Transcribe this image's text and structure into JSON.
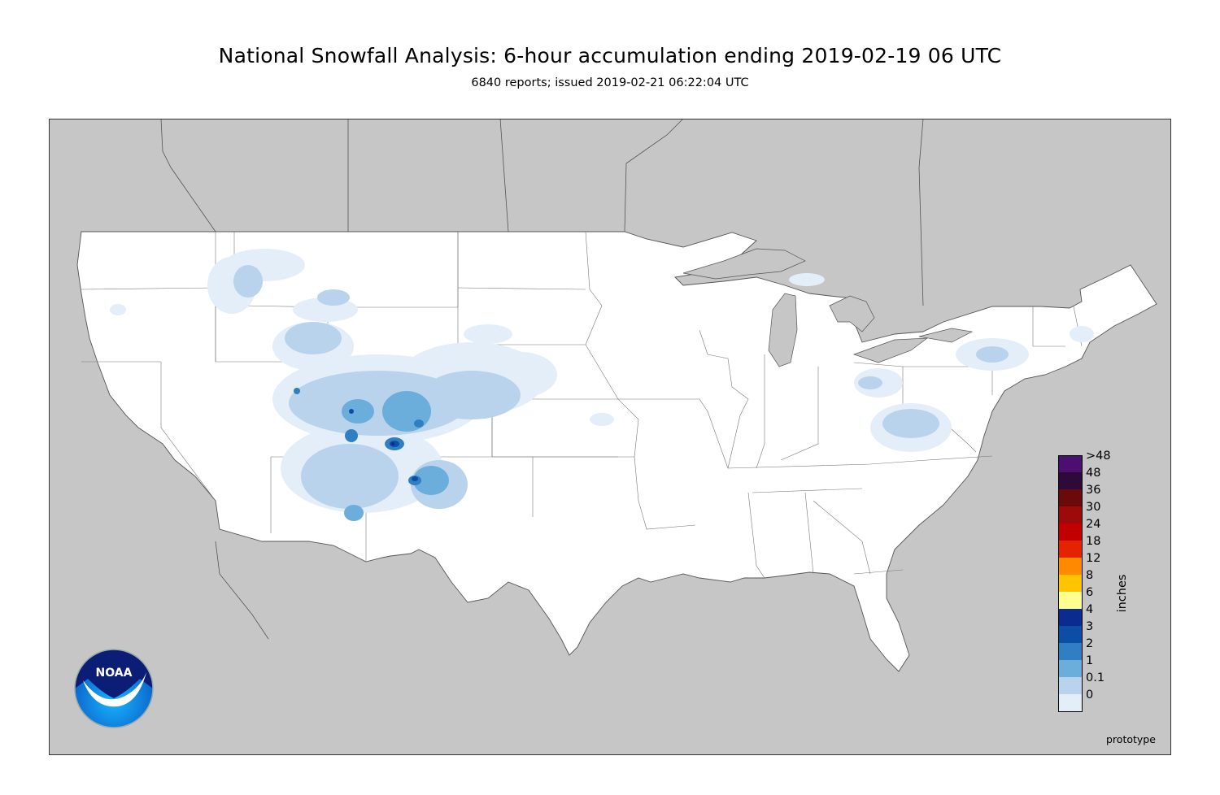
{
  "header": {
    "title": "National Snowfall Analysis: 6-hour accumulation ending 2019-02-19 06 UTC",
    "subtitle": "6840 reports; issued 2019-02-21 06:22:04 UTC"
  },
  "map": {
    "background_color": "#c6c6c6",
    "land_color": "#ffffff",
    "border_color": "#444444"
  },
  "legend": {
    "unit_label": "inches",
    "levels": [
      {
        "label": ">48",
        "color": "#4a0f6f"
      },
      {
        "label": "48",
        "color": "#2e0a3a"
      },
      {
        "label": "36",
        "color": "#6a0a0a"
      },
      {
        "label": "30",
        "color": "#9c0a0a"
      },
      {
        "label": "24",
        "color": "#c30000"
      },
      {
        "label": "18",
        "color": "#e52300"
      },
      {
        "label": "12",
        "color": "#ff8a00"
      },
      {
        "label": "8",
        "color": "#ffc400"
      },
      {
        "label": "6",
        "color": "#ffff90"
      },
      {
        "label": "4",
        "color": "#0c2b8e"
      },
      {
        "label": "3",
        "color": "#0c4ea6"
      },
      {
        "label": "2",
        "color": "#2f7fc2"
      },
      {
        "label": "1",
        "color": "#6baedc"
      },
      {
        "label": "0.1",
        "color": "#b8d3eb"
      },
      {
        "label": "0",
        "color": "#e3eef8"
      }
    ]
  },
  "logo": {
    "text": "NOAA"
  },
  "footer": {
    "note": "prototype"
  }
}
